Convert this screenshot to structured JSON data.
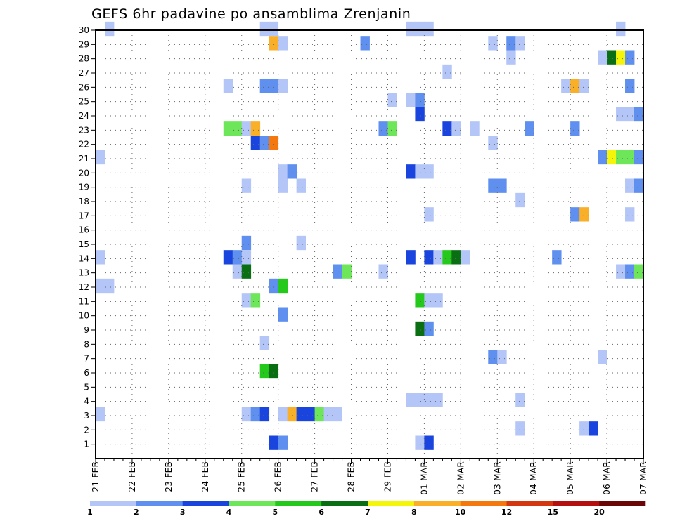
{
  "chart_data": {
    "type": "heatmap",
    "title": "GEFS 6hr padavine po ansamblima Zrenjanin",
    "x_ticks": [
      "21 FEB",
      "22 FEB",
      "23 FEB",
      "24 FEB",
      "25 FEB",
      "26 FEB",
      "27 FEB",
      "28 FEB",
      "29 FEB",
      "01 MAR",
      "02 MAR",
      "03 MAR",
      "04 MAR",
      "05 MAR",
      "06 MAR",
      "07 MAR"
    ],
    "y_ticks": [
      "1",
      "2",
      "3",
      "4",
      "5",
      "6",
      "7",
      "8",
      "9",
      "10",
      "11",
      "12",
      "13",
      "14",
      "15",
      "16",
      "17",
      "18",
      "19",
      "20",
      "21",
      "22",
      "23",
      "24",
      "25",
      "26",
      "27",
      "28",
      "29",
      "30"
    ],
    "x_unit": "6-hour step",
    "x_range": [
      0,
      60
    ],
    "y_range": [
      0,
      30
    ],
    "grid": true,
    "legend_levels": [
      "1",
      "2",
      "3",
      "4",
      "5",
      "6",
      "7",
      "8",
      "10",
      "12",
      "15",
      "20"
    ],
    "legend_colors": [
      "#b3c6f7",
      "#5f8fef",
      "#1a44de",
      "#6ee65a",
      "#24c91c",
      "#0a6e12",
      "#f5f50a",
      "#f9af28",
      "#f4780e",
      "#d43710",
      "#b51010",
      "#6a0606"
    ],
    "cells": [
      {
        "x": 1,
        "y": 30,
        "v": 1
      },
      {
        "x": 18,
        "y": 30,
        "v": 1
      },
      {
        "x": 19,
        "y": 30,
        "v": 1
      },
      {
        "x": 34,
        "y": 30,
        "v": 1
      },
      {
        "x": 35,
        "y": 30,
        "v": 1
      },
      {
        "x": 36,
        "y": 30,
        "v": 1
      },
      {
        "x": 57,
        "y": 30,
        "v": 1
      },
      {
        "x": 19,
        "y": 29,
        "v": 8
      },
      {
        "x": 20,
        "y": 29,
        "v": 1
      },
      {
        "x": 29,
        "y": 29,
        "v": 2
      },
      {
        "x": 43,
        "y": 29,
        "v": 1
      },
      {
        "x": 45,
        "y": 29,
        "v": 2
      },
      {
        "x": 46,
        "y": 29,
        "v": 1
      },
      {
        "x": 45,
        "y": 28,
        "v": 1
      },
      {
        "x": 55,
        "y": 28,
        "v": 1
      },
      {
        "x": 56,
        "y": 28,
        "v": 6
      },
      {
        "x": 57,
        "y": 28,
        "v": 7
      },
      {
        "x": 58,
        "y": 28,
        "v": 2
      },
      {
        "x": 38,
        "y": 27,
        "v": 1
      },
      {
        "x": 14,
        "y": 26,
        "v": 1
      },
      {
        "x": 18,
        "y": 26,
        "v": 2
      },
      {
        "x": 19,
        "y": 26,
        "v": 2
      },
      {
        "x": 20,
        "y": 26,
        "v": 1
      },
      {
        "x": 51,
        "y": 26,
        "v": 1
      },
      {
        "x": 52,
        "y": 26,
        "v": 8
      },
      {
        "x": 53,
        "y": 26,
        "v": 1
      },
      {
        "x": 58,
        "y": 26,
        "v": 2
      },
      {
        "x": 32,
        "y": 25,
        "v": 1
      },
      {
        "x": 34,
        "y": 25,
        "v": 1
      },
      {
        "x": 35,
        "y": 25,
        "v": 2
      },
      {
        "x": 35,
        "y": 24,
        "v": 3
      },
      {
        "x": 57,
        "y": 24,
        "v": 1
      },
      {
        "x": 58,
        "y": 24,
        "v": 1
      },
      {
        "x": 59,
        "y": 24,
        "v": 2
      },
      {
        "x": 14,
        "y": 23,
        "v": 4
      },
      {
        "x": 15,
        "y": 23,
        "v": 4
      },
      {
        "x": 16,
        "y": 23,
        "v": 1
      },
      {
        "x": 17,
        "y": 23,
        "v": 8
      },
      {
        "x": 31,
        "y": 23,
        "v": 2
      },
      {
        "x": 32,
        "y": 23,
        "v": 4
      },
      {
        "x": 38,
        "y": 23,
        "v": 3
      },
      {
        "x": 39,
        "y": 23,
        "v": 1
      },
      {
        "x": 41,
        "y": 23,
        "v": 1
      },
      {
        "x": 47,
        "y": 23,
        "v": 2
      },
      {
        "x": 52,
        "y": 23,
        "v": 2
      },
      {
        "x": 17,
        "y": 22,
        "v": 3
      },
      {
        "x": 18,
        "y": 22,
        "v": 2
      },
      {
        "x": 19,
        "y": 22,
        "v": 9
      },
      {
        "x": 43,
        "y": 22,
        "v": 1
      },
      {
        "x": 0,
        "y": 21,
        "v": 1
      },
      {
        "x": 55,
        "y": 21,
        "v": 2
      },
      {
        "x": 56,
        "y": 21,
        "v": 7
      },
      {
        "x": 57,
        "y": 21,
        "v": 4
      },
      {
        "x": 58,
        "y": 21,
        "v": 4
      },
      {
        "x": 59,
        "y": 21,
        "v": 2
      },
      {
        "x": 20,
        "y": 20,
        "v": 1
      },
      {
        "x": 21,
        "y": 20,
        "v": 2
      },
      {
        "x": 34,
        "y": 20,
        "v": 3
      },
      {
        "x": 35,
        "y": 20,
        "v": 1
      },
      {
        "x": 36,
        "y": 20,
        "v": 1
      },
      {
        "x": 16,
        "y": 19,
        "v": 1
      },
      {
        "x": 20,
        "y": 19,
        "v": 1
      },
      {
        "x": 22,
        "y": 19,
        "v": 1
      },
      {
        "x": 43,
        "y": 19,
        "v": 2
      },
      {
        "x": 44,
        "y": 19,
        "v": 2
      },
      {
        "x": 58,
        "y": 19,
        "v": 1
      },
      {
        "x": 59,
        "y": 19,
        "v": 2
      },
      {
        "x": 46,
        "y": 18,
        "v": 1
      },
      {
        "x": 36,
        "y": 17,
        "v": 1
      },
      {
        "x": 52,
        "y": 17,
        "v": 2
      },
      {
        "x": 53,
        "y": 17,
        "v": 8
      },
      {
        "x": 58,
        "y": 17,
        "v": 1
      },
      {
        "x": 16,
        "y": 15,
        "v": 2
      },
      {
        "x": 22,
        "y": 15,
        "v": 1
      },
      {
        "x": 0,
        "y": 14,
        "v": 1
      },
      {
        "x": 14,
        "y": 14,
        "v": 3
      },
      {
        "x": 15,
        "y": 14,
        "v": 2
      },
      {
        "x": 16,
        "y": 14,
        "v": 1
      },
      {
        "x": 34,
        "y": 14,
        "v": 3
      },
      {
        "x": 36,
        "y": 14,
        "v": 3
      },
      {
        "x": 37,
        "y": 14,
        "v": 1
      },
      {
        "x": 38,
        "y": 14,
        "v": 5
      },
      {
        "x": 39,
        "y": 14,
        "v": 6
      },
      {
        "x": 40,
        "y": 14,
        "v": 1
      },
      {
        "x": 50,
        "y": 14,
        "v": 2
      },
      {
        "x": 15,
        "y": 13,
        "v": 1
      },
      {
        "x": 16,
        "y": 13,
        "v": 6
      },
      {
        "x": 26,
        "y": 13,
        "v": 2
      },
      {
        "x": 27,
        "y": 13,
        "v": 4
      },
      {
        "x": 31,
        "y": 13,
        "v": 1
      },
      {
        "x": 57,
        "y": 13,
        "v": 1
      },
      {
        "x": 58,
        "y": 13,
        "v": 2
      },
      {
        "x": 59,
        "y": 13,
        "v": 4
      },
      {
        "x": 0,
        "y": 12,
        "v": 1
      },
      {
        "x": 1,
        "y": 12,
        "v": 1
      },
      {
        "x": 19,
        "y": 12,
        "v": 2
      },
      {
        "x": 20,
        "y": 12,
        "v": 5
      },
      {
        "x": 16,
        "y": 11,
        "v": 1
      },
      {
        "x": 17,
        "y": 11,
        "v": 4
      },
      {
        "x": 35,
        "y": 11,
        "v": 5
      },
      {
        "x": 36,
        "y": 11,
        "v": 1
      },
      {
        "x": 37,
        "y": 11,
        "v": 1
      },
      {
        "x": 20,
        "y": 10,
        "v": 2
      },
      {
        "x": 35,
        "y": 9,
        "v": 6
      },
      {
        "x": 36,
        "y": 9,
        "v": 2
      },
      {
        "x": 18,
        "y": 8,
        "v": 1
      },
      {
        "x": 43,
        "y": 7,
        "v": 2
      },
      {
        "x": 44,
        "y": 7,
        "v": 1
      },
      {
        "x": 55,
        "y": 7,
        "v": 1
      },
      {
        "x": 18,
        "y": 6,
        "v": 5
      },
      {
        "x": 19,
        "y": 6,
        "v": 6
      },
      {
        "x": 34,
        "y": 4,
        "v": 1
      },
      {
        "x": 35,
        "y": 4,
        "v": 1
      },
      {
        "x": 36,
        "y": 4,
        "v": 1
      },
      {
        "x": 37,
        "y": 4,
        "v": 1
      },
      {
        "x": 46,
        "y": 4,
        "v": 1
      },
      {
        "x": 0,
        "y": 3,
        "v": 1
      },
      {
        "x": 16,
        "y": 3,
        "v": 1
      },
      {
        "x": 17,
        "y": 3,
        "v": 2
      },
      {
        "x": 18,
        "y": 3,
        "v": 3
      },
      {
        "x": 20,
        "y": 3,
        "v": 1
      },
      {
        "x": 21,
        "y": 3,
        "v": 8
      },
      {
        "x": 22,
        "y": 3,
        "v": 3
      },
      {
        "x": 23,
        "y": 3,
        "v": 3
      },
      {
        "x": 24,
        "y": 3,
        "v": 4
      },
      {
        "x": 25,
        "y": 3,
        "v": 1
      },
      {
        "x": 26,
        "y": 3,
        "v": 1
      },
      {
        "x": 46,
        "y": 2,
        "v": 1
      },
      {
        "x": 53,
        "y": 2,
        "v": 1
      },
      {
        "x": 54,
        "y": 2,
        "v": 3
      },
      {
        "x": 19,
        "y": 1,
        "v": 3
      },
      {
        "x": 20,
        "y": 1,
        "v": 2
      },
      {
        "x": 35,
        "y": 1,
        "v": 1
      },
      {
        "x": 36,
        "y": 1,
        "v": 3
      }
    ]
  }
}
